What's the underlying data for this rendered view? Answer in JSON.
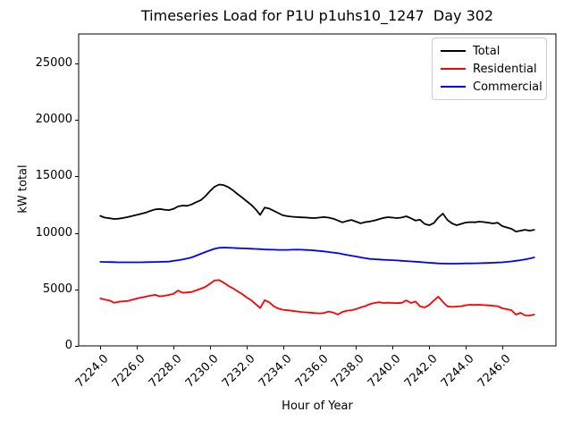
{
  "chart_data": {
    "type": "line",
    "title": "Timeseries Load for P1U p1uhs10_1247  Day 302",
    "xlabel": "Hour of Year",
    "ylabel": "kW total",
    "xlim": [
      7222.8125,
      7248.9375
    ],
    "ylim": [
      0,
      27610
    ],
    "grid": false,
    "legend_position": "upper-right",
    "x_ticks": [
      7224,
      7226,
      7228,
      7230,
      7232,
      7234,
      7236,
      7238,
      7240,
      7242,
      7244,
      7246
    ],
    "x_tick_labels": [
      "7224.0",
      "7226.0",
      "7228.0",
      "7230.0",
      "7232.0",
      "7234.0",
      "7236.0",
      "7238.0",
      "7240.0",
      "7242.0",
      "7244.0",
      "7246.0"
    ],
    "y_ticks": [
      0,
      5000,
      10000,
      15000,
      20000,
      25000
    ],
    "y_tick_labels": [
      "0",
      "5000",
      "10000",
      "15000",
      "20000",
      "25000"
    ],
    "x_start": 7224.0,
    "x_step": 0.25,
    "series": [
      {
        "name": "Total",
        "color": "#000000",
        "values": [
          11500,
          11350,
          11300,
          11230,
          11260,
          11320,
          11400,
          11500,
          11600,
          11700,
          11800,
          11950,
          12080,
          12120,
          12060,
          12020,
          12120,
          12340,
          12420,
          12400,
          12520,
          12720,
          12900,
          13250,
          13700,
          14080,
          14280,
          14230,
          14050,
          13780,
          13450,
          13150,
          12820,
          12500,
          12100,
          11600,
          12250,
          12150,
          11950,
          11750,
          11550,
          11480,
          11430,
          11400,
          11380,
          11360,
          11330,
          11310,
          11360,
          11400,
          11350,
          11260,
          11100,
          10930,
          11060,
          11150,
          11000,
          10850,
          10960,
          11010,
          11090,
          11210,
          11330,
          11390,
          11350,
          11310,
          11360,
          11470,
          11300,
          11090,
          11160,
          10800,
          10680,
          10860,
          11350,
          11710,
          11150,
          10850,
          10680,
          10800,
          10920,
          10960,
          10940,
          11000,
          10960,
          10900,
          10840,
          10900,
          10600,
          10480,
          10360,
          10120,
          10200,
          10280,
          10200,
          10280
        ]
      },
      {
        "name": "Residential",
        "color": "#ff0000",
        "values": [
          4200,
          4090,
          4020,
          3820,
          3900,
          3950,
          3970,
          4080,
          4190,
          4280,
          4360,
          4450,
          4520,
          4380,
          4430,
          4510,
          4600,
          4900,
          4700,
          4730,
          4770,
          4910,
          5060,
          5220,
          5500,
          5780,
          5820,
          5600,
          5320,
          5100,
          4850,
          4600,
          4300,
          4050,
          3700,
          3350,
          4050,
          3850,
          3500,
          3300,
          3200,
          3150,
          3100,
          3050,
          3000,
          2970,
          2940,
          2900,
          2880,
          2920,
          3040,
          2950,
          2780,
          3000,
          3120,
          3160,
          3260,
          3400,
          3520,
          3700,
          3800,
          3860,
          3800,
          3820,
          3800,
          3780,
          3810,
          4030,
          3800,
          3920,
          3500,
          3400,
          3620,
          4000,
          4360,
          3900,
          3500,
          3450,
          3480,
          3510,
          3600,
          3640,
          3620,
          3640,
          3610,
          3580,
          3550,
          3510,
          3320,
          3240,
          3160,
          2770,
          2930,
          2700,
          2690,
          2770
        ]
      },
      {
        "name": "Commercial",
        "color": "#0000ff",
        "values": [
          7440,
          7430,
          7420,
          7410,
          7400,
          7400,
          7400,
          7400,
          7400,
          7400,
          7410,
          7420,
          7430,
          7440,
          7450,
          7460,
          7520,
          7580,
          7650,
          7740,
          7830,
          7990,
          8150,
          8310,
          8460,
          8590,
          8680,
          8700,
          8690,
          8670,
          8650,
          8630,
          8620,
          8600,
          8580,
          8560,
          8540,
          8520,
          8510,
          8500,
          8500,
          8500,
          8510,
          8520,
          8510,
          8490,
          8470,
          8440,
          8400,
          8360,
          8310,
          8260,
          8200,
          8130,
          8050,
          7980,
          7910,
          7830,
          7760,
          7700,
          7670,
          7650,
          7620,
          7600,
          7590,
          7560,
          7530,
          7510,
          7480,
          7450,
          7420,
          7390,
          7360,
          7330,
          7300,
          7290,
          7280,
          7280,
          7280,
          7290,
          7300,
          7300,
          7310,
          7320,
          7330,
          7340,
          7360,
          7380,
          7400,
          7440,
          7480,
          7530,
          7590,
          7660,
          7740,
          7830
        ]
      }
    ]
  }
}
